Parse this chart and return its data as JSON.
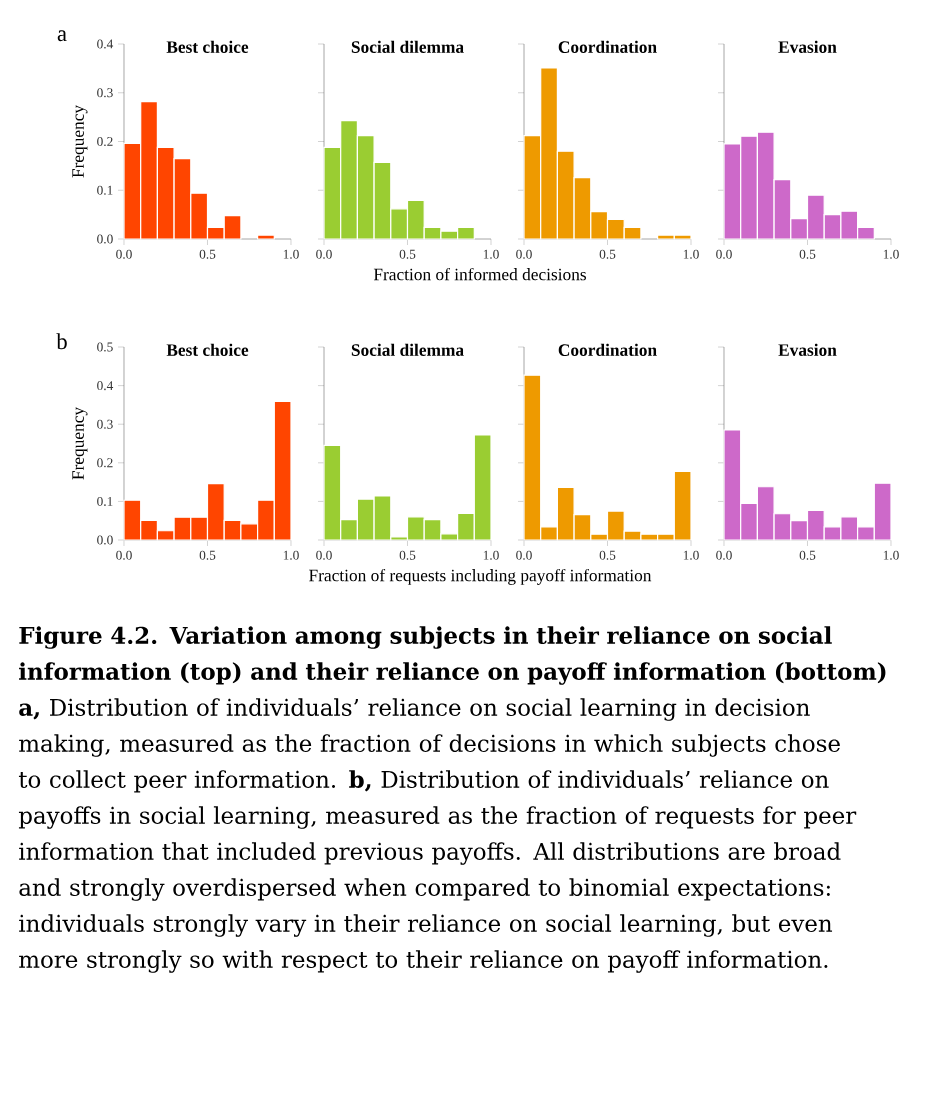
{
  "chart_data": [
    {
      "type": "histogram",
      "title": "Best choice",
      "ylabel": "Frequency",
      "xlabel": "Fraction of informed decisions",
      "annotations": [
        "a"
      ],
      "color": "#ff4500",
      "bins": [
        0,
        0.1,
        0.2,
        0.3,
        0.4,
        0.5,
        0.6,
        0.7,
        0.8,
        0.9,
        1.0
      ],
      "values": [
        0.196,
        0.282,
        0.188,
        0.165,
        0.094,
        0.024,
        0.048,
        0,
        0.008,
        0
      ],
      "xlim": [
        0,
        1
      ],
      "ylim": [
        0,
        0.4
      ],
      "xticks": [
        {
          "value": 0,
          "label": "0.0"
        },
        {
          "value": 0.5,
          "label": "0.5"
        },
        {
          "value": 1,
          "label": "1.0"
        }
      ],
      "yticks": [
        {
          "value": 0,
          "label": "0.0"
        },
        0.1,
        0.2,
        0.3,
        0.4
      ]
    },
    {
      "type": "histogram",
      "title": "Social dilemma",
      "color": "#9acd32",
      "bins": [
        0,
        0.1,
        0.2,
        0.3,
        0.4,
        0.5,
        0.6,
        0.7,
        0.8,
        0.9,
        1.0
      ],
      "values": [
        0.188,
        0.243,
        0.212,
        0.157,
        0.062,
        0.079,
        0.024,
        0.016,
        0.024,
        0
      ],
      "xlim": [
        0,
        1
      ],
      "ylim": [
        0,
        0.4
      ],
      "xticks": [
        {
          "value": 0,
          "label": "0.0"
        },
        {
          "value": 0.5,
          "label": "0.5"
        },
        {
          "value": 1,
          "label": "1.0"
        }
      ],
      "yticks": [
        0,
        0.1,
        0.2,
        0.3,
        0.4
      ],
      "tick_labels": "x"
    },
    {
      "type": "histogram",
      "title": "Coordination",
      "color": "#ee9a00",
      "bins": [
        0,
        0.1,
        0.2,
        0.3,
        0.4,
        0.5,
        0.6,
        0.7,
        0.8,
        0.9,
        1.0
      ],
      "values": [
        0.212,
        0.351,
        0.18,
        0.126,
        0.056,
        0.04,
        0.024,
        0,
        0.008,
        0.008
      ],
      "xlim": [
        0,
        1
      ],
      "ylim": [
        0,
        0.4
      ],
      "xticks": [
        {
          "value": 0,
          "label": "0.0"
        },
        {
          "value": 0.5,
          "label": "0.5"
        },
        {
          "value": 1,
          "label": "1.0"
        }
      ],
      "yticks": [
        0,
        0.1,
        0.2,
        0.3,
        0.4
      ],
      "tick_labels": "x"
    },
    {
      "type": "histogram",
      "title": "Evasion",
      "color": "#cd69c9",
      "bins": [
        0,
        0.1,
        0.2,
        0.3,
        0.4,
        0.5,
        0.6,
        0.7,
        0.8,
        0.9,
        1.0
      ],
      "values": [
        0.195,
        0.211,
        0.219,
        0.122,
        0.042,
        0.09,
        0.05,
        0.057,
        0.024,
        0
      ],
      "xlim": [
        0,
        1
      ],
      "ylim": [
        0,
        0.4
      ],
      "xticks": [
        {
          "value": 0,
          "label": "0.0"
        },
        {
          "value": 0.5,
          "label": "0.5"
        },
        {
          "value": 1,
          "label": "1.0"
        }
      ],
      "yticks": [
        0,
        0.1,
        0.2,
        0.3,
        0.4
      ],
      "tick_labels": "x"
    },
    {
      "type": "histogram",
      "title": "Best choice",
      "ylabel": "Frequency",
      "xlabel": "Fraction of requests including payoff information",
      "annotations": [
        "b"
      ],
      "color": "#ff4500",
      "bins": [
        0,
        0.1,
        0.2,
        0.3,
        0.4,
        0.5,
        0.6,
        0.7,
        0.8,
        0.9,
        1.0
      ],
      "values": [
        0.103,
        0.051,
        0.024,
        0.059,
        0.059,
        0.146,
        0.051,
        0.042,
        0.103,
        0.359
      ],
      "xlim": [
        0,
        1
      ],
      "ylim": [
        0,
        0.5
      ],
      "xticks": [
        {
          "value": 0,
          "label": "0.0"
        },
        {
          "value": 0.5,
          "label": "0.5"
        },
        {
          "value": 1,
          "label": "1.0"
        }
      ],
      "yticks": [
        {
          "value": 0,
          "label": "0.0"
        },
        0.1,
        0.2,
        0.3,
        0.4,
        0.5
      ]
    },
    {
      "type": "histogram",
      "title": "Social dilemma",
      "color": "#9acd32",
      "bins": [
        0,
        0.1,
        0.2,
        0.3,
        0.4,
        0.5,
        0.6,
        0.7,
        0.8,
        0.9,
        1.0
      ],
      "values": [
        0.245,
        0.053,
        0.106,
        0.114,
        0.008,
        0.06,
        0.053,
        0.016,
        0.069,
        0.272
      ],
      "xlim": [
        0,
        1
      ],
      "ylim": [
        0,
        0.5
      ],
      "xticks": [
        {
          "value": 0,
          "label": "0.0"
        },
        {
          "value": 0.5,
          "label": "0.5"
        },
        {
          "value": 1,
          "label": "1.0"
        }
      ],
      "yticks": [
        0,
        0.1,
        0.2,
        0.3,
        0.4,
        0.5
      ],
      "tick_labels": "x"
    },
    {
      "type": "histogram",
      "title": "Coordination",
      "color": "#ee9a00",
      "bins": [
        0,
        0.1,
        0.2,
        0.3,
        0.4,
        0.5,
        0.6,
        0.7,
        0.8,
        0.9,
        1.0
      ],
      "values": [
        0.427,
        0.034,
        0.136,
        0.066,
        0.015,
        0.075,
        0.023,
        0.015,
        0.015,
        0.178
      ],
      "xlim": [
        0,
        1
      ],
      "ylim": [
        0,
        0.5
      ],
      "xticks": [
        {
          "value": 0,
          "label": "0.0"
        },
        {
          "value": 0.5,
          "label": "0.5"
        },
        {
          "value": 1,
          "label": "1.0"
        }
      ],
      "yticks": [
        0,
        0.1,
        0.2,
        0.3,
        0.4,
        0.5
      ],
      "tick_labels": "x"
    },
    {
      "type": "histogram",
      "title": "Evasion",
      "color": "#cd69c9",
      "bins": [
        0,
        0.1,
        0.2,
        0.3,
        0.4,
        0.5,
        0.6,
        0.7,
        0.8,
        0.9,
        1.0
      ],
      "values": [
        0.285,
        0.095,
        0.138,
        0.068,
        0.05,
        0.077,
        0.034,
        0.06,
        0.034,
        0.147
      ],
      "xlim": [
        0,
        1
      ],
      "ylim": [
        0,
        0.5
      ],
      "xticks": [
        {
          "value": 0,
          "label": "0.0"
        },
        {
          "value": 0.5,
          "label": "0.5"
        },
        {
          "value": 1,
          "label": "1.0"
        }
      ],
      "yticks": [
        0,
        0.1,
        0.2,
        0.3,
        0.4,
        0.5
      ],
      "tick_labels": "x",
      "annotations": [
        "**Figure 4.2. Variation among subjects in their reliance on social information (top) and their reliance on payoff information (bottom) a,** Distribution of individuals’ reliance on social learning in decision making, measured as the fraction of decisions in which subjects chose to collect peer information. **b,** Distribution of individuals’ reliance on payoffs in social learning, measured as the fraction of requests for peer information that included previous payoffs. All distributions are broad and strongly overdispersed when compared to binomial expectations: individuals strongly vary in their reliance on social learning, but even more strongly so with respect to their reliance on payoff information."
      ]
    }
  ]
}
